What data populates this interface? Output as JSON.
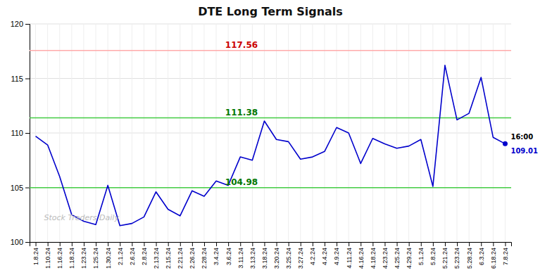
{
  "chart_data": {
    "type": "line",
    "title": "DTE Long Term Signals",
    "color": "#0000cc",
    "grid": true,
    "ylim": [
      100,
      120
    ],
    "yticks": [
      100,
      105,
      110,
      115,
      120
    ],
    "categories": [
      "1.8.24",
      "1.10.24",
      "1.16.24",
      "1.18.24",
      "1.23.24",
      "1.25.24",
      "1.30.24",
      "2.1.24",
      "2.6.24",
      "2.8.24",
      "2.13.24",
      "2.15.24",
      "2.21.24",
      "2.26.24",
      "2.28.24",
      "3.4.24",
      "3.6.24",
      "3.11.24",
      "3.13.24",
      "3.18.24",
      "3.20.24",
      "3.25.24",
      "3.27.24",
      "4.2.24",
      "4.4.24",
      "4.9.24",
      "4.11.24",
      "4.16.24",
      "4.18.24",
      "4.23.24",
      "4.25.24",
      "4.29.24",
      "5.1.24",
      "5.8.24",
      "5.21.24",
      "5.23.24",
      "5.28.24",
      "6.3.24",
      "6.18.24",
      "7.8.24"
    ],
    "values": [
      109.7,
      108.9,
      106.0,
      102.5,
      101.9,
      101.6,
      105.2,
      101.5,
      101.7,
      102.3,
      104.6,
      103.0,
      102.4,
      104.7,
      104.2,
      105.6,
      105.2,
      107.8,
      107.5,
      111.1,
      109.4,
      109.2,
      107.6,
      107.8,
      108.3,
      110.5,
      110.0,
      107.2,
      109.5,
      109.0,
      108.6,
      108.8,
      109.4,
      105.1,
      116.2,
      111.2,
      111.8,
      115.1,
      109.6,
      109.01
    ],
    "reference_lines": [
      {
        "value": 117.56,
        "label": "117.56",
        "color": "#ffaaaa",
        "label_color": "#cc0000"
      },
      {
        "value": 111.38,
        "label": "111.38",
        "color": "#44cc44",
        "label_color": "#007700"
      },
      {
        "value": 104.98,
        "label": "104.98",
        "color": "#44cc44",
        "label_color": "#007700"
      }
    ],
    "annotations": [
      {
        "text": "16:00",
        "color": "#000000"
      },
      {
        "text": "109.01",
        "color": "#0000cc"
      }
    ],
    "watermark": {
      "text": "Stock Traders Daily",
      "color": "#bbbbbb"
    }
  }
}
